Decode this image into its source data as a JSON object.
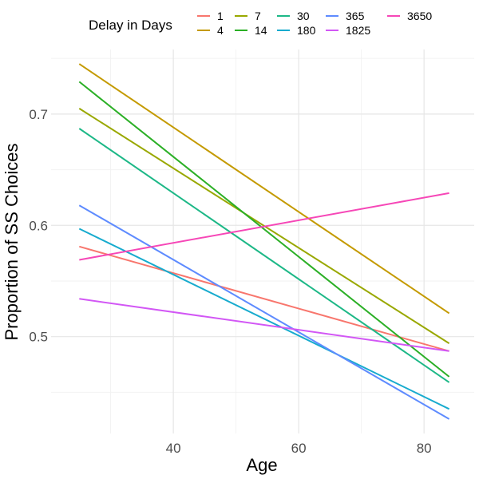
{
  "chart_data": {
    "type": "line",
    "title": "",
    "xlabel": "Age",
    "ylabel": "Proportion of SS Choices",
    "xlim": [
      20.5,
      88
    ],
    "ylim": [
      0.413,
      0.758
    ],
    "x_ticks": [
      40,
      60,
      80
    ],
    "y_ticks": [
      0.5,
      0.6,
      0.7
    ],
    "y_tick_labels": [
      "0.5",
      "0.6",
      "0.7"
    ],
    "x_tick_labels": [
      "40",
      "60",
      "80"
    ],
    "grid": true,
    "legend": {
      "title": "Delay in Days",
      "position": "top"
    },
    "series": [
      {
        "name": "1",
        "color": "#F8766D",
        "x": [
          25,
          84
        ],
        "y": [
          0.581,
          0.487
        ]
      },
      {
        "name": "4",
        "color": "#C49A00",
        "x": [
          25,
          84
        ],
        "y": [
          0.745,
          0.521
        ]
      },
      {
        "name": "7",
        "color": "#99A800",
        "x": [
          25,
          84
        ],
        "y": [
          0.705,
          0.494
        ]
      },
      {
        "name": "14",
        "color": "#2AAF25",
        "x": [
          25,
          84
        ],
        "y": [
          0.729,
          0.464
        ]
      },
      {
        "name": "30",
        "color": "#1DB887",
        "x": [
          25,
          84
        ],
        "y": [
          0.687,
          0.459
        ]
      },
      {
        "name": "180",
        "color": "#17ABCE",
        "x": [
          25,
          84
        ],
        "y": [
          0.597,
          0.435
        ]
      },
      {
        "name": "365",
        "color": "#5E8BFF",
        "x": [
          25,
          84
        ],
        "y": [
          0.618,
          0.426
        ]
      },
      {
        "name": "1825",
        "color": "#D257F5",
        "x": [
          25,
          84
        ],
        "y": [
          0.534,
          0.487
        ]
      },
      {
        "name": "3650",
        "color": "#F647B7",
        "x": [
          25,
          84
        ],
        "y": [
          0.569,
          0.629
        ]
      }
    ]
  }
}
